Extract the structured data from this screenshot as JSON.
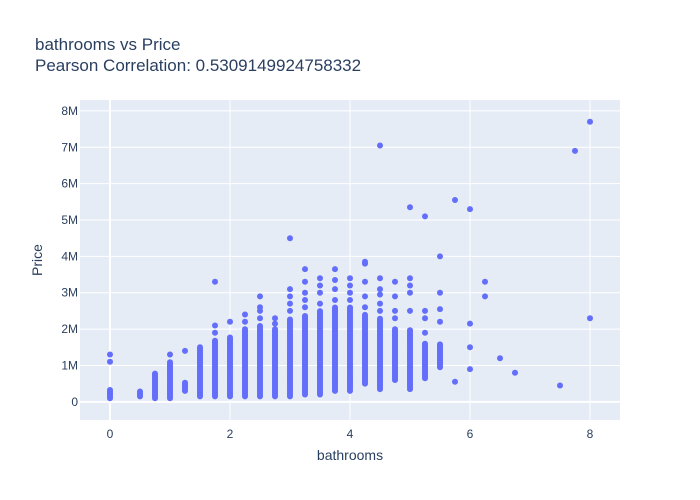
{
  "chart_data": {
    "type": "scatter",
    "title": "bathrooms vs Price",
    "subtitle": "Pearson Correlation: 0.5309149924758332",
    "xlabel": "bathrooms",
    "ylabel": "Price",
    "xlim": [
      -0.5,
      8.5
    ],
    "ylim": [
      -500000,
      8300000
    ],
    "xticks": [
      0,
      2,
      4,
      6,
      8
    ],
    "xtick_labels": [
      "0",
      "2",
      "4",
      "6",
      "8"
    ],
    "yticks": [
      0,
      1000000,
      2000000,
      3000000,
      4000000,
      5000000,
      6000000,
      7000000,
      8000000
    ],
    "ytick_labels": [
      "0",
      "1M",
      "2M",
      "3M",
      "4M",
      "5M",
      "6M",
      "7M",
      "8M"
    ],
    "grid": true,
    "marker_color": "#636efa",
    "plot_bg": "#e5ecf6",
    "columns": [
      {
        "x": 0,
        "ymin": 100000,
        "ymax": 350000,
        "extra": [
          1100000,
          1300000
        ]
      },
      {
        "x": 0.5,
        "ymin": 150000,
        "ymax": 300000,
        "extra": []
      },
      {
        "x": 0.75,
        "ymin": 100000,
        "ymax": 800000,
        "extra": []
      },
      {
        "x": 1,
        "ymin": 100000,
        "ymax": 1100000,
        "extra": [
          1300000
        ]
      },
      {
        "x": 1.25,
        "ymin": 300000,
        "ymax": 550000,
        "extra": [
          1400000
        ]
      },
      {
        "x": 1.5,
        "ymin": 150000,
        "ymax": 1500000,
        "extra": []
      },
      {
        "x": 1.75,
        "ymin": 150000,
        "ymax": 1700000,
        "extra": [
          1900000,
          2100000,
          3300000
        ]
      },
      {
        "x": 2,
        "ymin": 150000,
        "ymax": 1800000,
        "extra": [
          2200000
        ]
      },
      {
        "x": 2.25,
        "ymin": 150000,
        "ymax": 2000000,
        "extra": [
          2200000,
          2400000
        ]
      },
      {
        "x": 2.5,
        "ymin": 150000,
        "ymax": 2100000,
        "extra": [
          2300000,
          2500000,
          2600000,
          2900000
        ]
      },
      {
        "x": 2.75,
        "ymin": 150000,
        "ymax": 2000000,
        "extra": [
          2150000,
          2300000
        ]
      },
      {
        "x": 3,
        "ymin": 150000,
        "ymax": 2300000,
        "extra": [
          2500000,
          2700000,
          2900000,
          3100000,
          4500000
        ]
      },
      {
        "x": 3.25,
        "ymin": 200000,
        "ymax": 2400000,
        "extra": [
          2600000,
          2800000,
          3000000,
          3300000,
          3650000
        ]
      },
      {
        "x": 3.5,
        "ymin": 200000,
        "ymax": 2500000,
        "extra": [
          2700000,
          3000000,
          3200000,
          3400000
        ]
      },
      {
        "x": 3.75,
        "ymin": 300000,
        "ymax": 2600000,
        "extra": [
          2800000,
          3100000,
          3350000,
          3650000
        ]
      },
      {
        "x": 4,
        "ymin": 300000,
        "ymax": 2600000,
        "extra": [
          2800000,
          3000000,
          3200000,
          3400000
        ]
      },
      {
        "x": 4.25,
        "ymin": 500000,
        "ymax": 2400000,
        "extra": [
          2600000,
          2900000,
          3300000,
          3800000,
          3850000
        ]
      },
      {
        "x": 4.5,
        "ymin": 350000,
        "ymax": 2300000,
        "extra": [
          2500000,
          2700000,
          2950000,
          3100000,
          3400000,
          7050000
        ]
      },
      {
        "x": 4.75,
        "ymin": 600000,
        "ymax": 2000000,
        "extra": [
          2300000,
          2500000,
          2900000,
          3300000
        ]
      },
      {
        "x": 5,
        "ymin": 350000,
        "ymax": 2000000,
        "extra": [
          2500000,
          3000000,
          3200000,
          3400000,
          5350000
        ]
      },
      {
        "x": 5.25,
        "ymin": 650000,
        "ymax": 1600000,
        "extra": [
          1900000,
          2300000,
          2500000,
          5100000
        ]
      },
      {
        "x": 5.5,
        "ymin": 950000,
        "ymax": 1600000,
        "extra": [
          2200000,
          2550000,
          3000000,
          4000000
        ]
      },
      {
        "x": 5.75,
        "ymin": 550000,
        "ymax": 550000,
        "extra": [
          5550000
        ]
      },
      {
        "x": 6,
        "ymin": 900000,
        "ymax": 900000,
        "extra": [
          1500000,
          2150000,
          5300000
        ]
      },
      {
        "x": 6.25,
        "ymin": 2900000,
        "ymax": 2900000,
        "extra": [
          3300000
        ]
      },
      {
        "x": 6.5,
        "ymin": 1200000,
        "ymax": 1200000,
        "extra": []
      },
      {
        "x": 6.75,
        "ymin": 800000,
        "ymax": 800000,
        "extra": []
      },
      {
        "x": 7.5,
        "ymin": 450000,
        "ymax": 450000,
        "extra": []
      },
      {
        "x": 7.75,
        "ymin": 6900000,
        "ymax": 6900000,
        "extra": []
      },
      {
        "x": 8,
        "ymin": 2300000,
        "ymax": 2300000,
        "extra": [
          7700000
        ]
      }
    ]
  }
}
